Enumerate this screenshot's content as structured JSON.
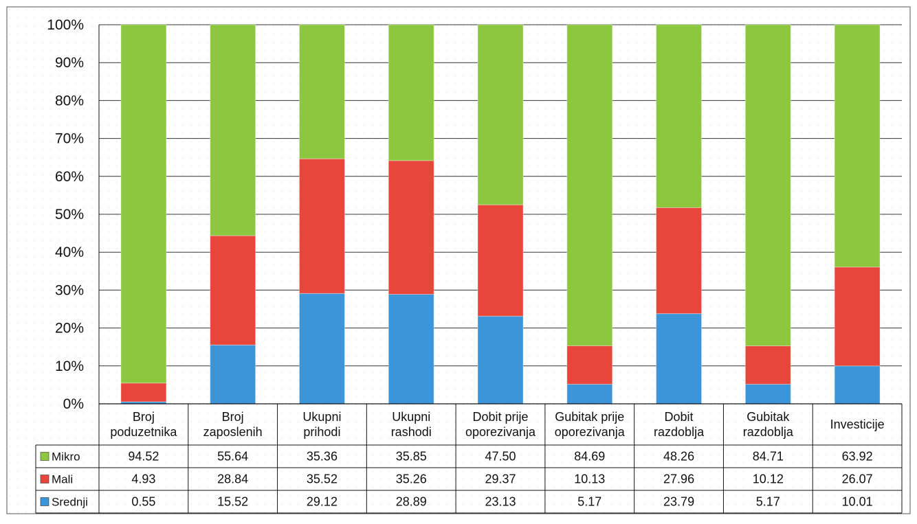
{
  "chart_data": {
    "type": "bar",
    "stacked": true,
    "percent_stacked": true,
    "categories": [
      [
        "Broj",
        "poduzetnika"
      ],
      [
        "Broj",
        "zaposlenih"
      ],
      [
        "Ukupni",
        "prihodi"
      ],
      [
        "Ukupni",
        "rashodi"
      ],
      [
        "Dobit prije",
        "oporezivanja"
      ],
      [
        "Gubitak prije",
        "oporezivanja"
      ],
      [
        "Dobit",
        "razdoblja"
      ],
      [
        "Gubitak",
        "razdoblja"
      ],
      [
        "Investicije"
      ]
    ],
    "series": [
      {
        "name": "Mikro",
        "color": "#8DC63F",
        "values_text": [
          "94.52",
          "55.64",
          "35.36",
          "35.85",
          "47.50",
          "84.69",
          "48.26",
          "84.71",
          "63.92"
        ],
        "values": [
          94.52,
          55.64,
          35.36,
          35.85,
          47.5,
          84.69,
          48.26,
          84.71,
          63.92
        ]
      },
      {
        "name": "Mali",
        "color": "#E8463A",
        "values_text": [
          "4.93",
          "28.84",
          "35.52",
          "35.26",
          "29.37",
          "10.13",
          "27.96",
          "10.12",
          "26.07"
        ],
        "values": [
          4.93,
          28.84,
          35.52,
          35.26,
          29.37,
          10.13,
          27.96,
          10.12,
          26.07
        ]
      },
      {
        "name": "Srednji",
        "color": "#3B95D8",
        "values_text": [
          "0.55",
          "15.52",
          "29.12",
          "28.89",
          "23.13",
          "5.17",
          "23.79",
          "5.17",
          "10.01"
        ],
        "values": [
          0.55,
          15.52,
          29.12,
          28.89,
          23.13,
          5.17,
          23.79,
          5.17,
          10.01
        ]
      }
    ],
    "yticks": [
      "0%",
      "10%",
      "20%",
      "30%",
      "40%",
      "50%",
      "60%",
      "70%",
      "80%",
      "90%",
      "100%"
    ],
    "ylim": [
      0,
      100
    ],
    "grid": true,
    "legend": "data-table-left",
    "title": "",
    "xlabel": "",
    "ylabel": ""
  }
}
